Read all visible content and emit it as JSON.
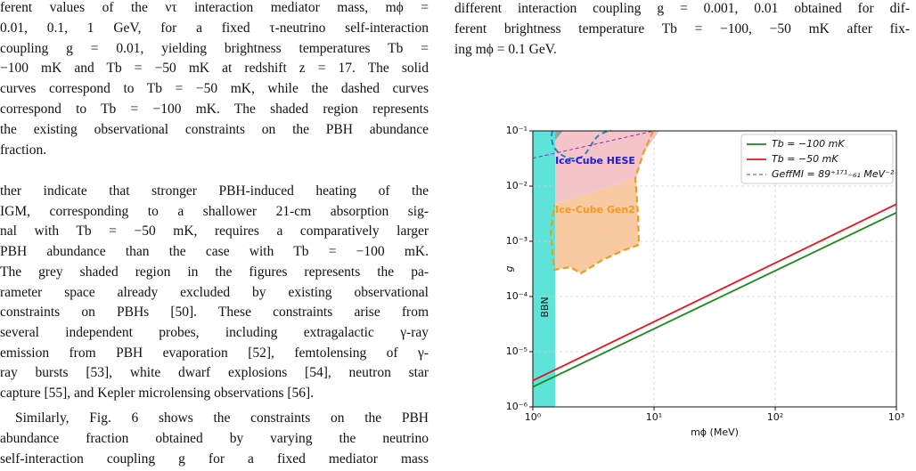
{
  "left_caption_lines": [
    "ferent values of the ντ interaction mediator mass, mϕ =",
    "0.01, 0.1, 1 GeV, for a fixed τ-neutrino self-interaction",
    "coupling g = 0.01, yielding brightness temperatures Tb =",
    "−100 mK and Tb = −50 mK at redshift z = 17. The solid",
    "curves correspond to Tb = −50 mK, while the dashed curves",
    "correspond to Tb = −100 mK. The shaded region represents",
    "the existing observational constraints on the PBH abundance",
    "fraction."
  ],
  "body_paragraphs": [
    [
      "ther indicate that stronger PBH-induced heating of the",
      "IGM, corresponding to a shallower 21-cm absorption sig-",
      "nal with Tb = −50 mK, requires a comparatively larger",
      "PBH abundance than the case with Tb = −100 mK.",
      "The grey shaded region in the figures represents the pa-",
      "rameter space already excluded by existing observational",
      "constraints on PBHs [50]. These constraints arise from",
      "several independent probes, including extragalactic γ-ray",
      "emission from PBH evaporation [52], femtolensing of γ-",
      "ray bursts [53], white dwarf explosions [54], neutron star",
      "capture [55], and Kepler microlensing observations [56]."
    ],
    [
      "Similarly, Fig. 6 shows the constraints on the PBH",
      "abundance fraction obtained by varying the neutrino",
      "self-interaction coupling g for a fixed mediator mass"
    ]
  ],
  "right_caption_lines": [
    "different interaction coupling g = 0.001, 0.01 obtained for dif-",
    "ferent brightness temperature Tb = −100, −50 mK after fix-",
    "ing mϕ = 0.1 GeV."
  ],
  "figure": {
    "chart_data": {
      "type": "line",
      "x_label": "mϕ (MeV)",
      "y_label": "g",
      "xscale": "log",
      "yscale": "log",
      "grid": true,
      "xlim": [
        1,
        1000
      ],
      "ylim": [
        1e-06,
        0.1
      ],
      "xticks": [
        {
          "value": 1,
          "label": "10⁰"
        },
        {
          "value": 10,
          "label": "10¹"
        },
        {
          "value": 100,
          "label": "10²"
        },
        {
          "value": 1000,
          "label": "10³"
        }
      ],
      "yticks": [
        {
          "value": 1e-06,
          "label": "10⁻⁶"
        },
        {
          "value": 1e-05,
          "label": "10⁻⁵"
        },
        {
          "value": 0.0001,
          "label": "10⁻⁴"
        },
        {
          "value": 0.001,
          "label": "10⁻³"
        },
        {
          "value": 0.01,
          "label": "10⁻²"
        },
        {
          "value": 0.1,
          "label": "10⁻¹"
        }
      ],
      "legend": "upper right",
      "series": [
        {
          "name": "Tb = −100 mK",
          "color": "#1a8a1a",
          "x": [
            1,
            1000
          ],
          "values": [
            2.3e-06,
            0.0033
          ]
        },
        {
          "name": "Tb = −50 mK",
          "color": "#e8141e",
          "x": [
            1,
            1000
          ],
          "values": [
            3e-06,
            0.0047
          ]
        },
        {
          "name": "GeffMI = 89⁺¹⁷¹₋₆₁ MeV⁻²",
          "color": "#9b1fb0",
          "dashed": true,
          "x": [
            1,
            10
          ],
          "values": [
            0.032,
            0.1
          ]
        }
      ],
      "annotations": [
        "BBN",
        "Ice-Cube HESE",
        "Ice-Cube Gen2"
      ]
    }
  }
}
